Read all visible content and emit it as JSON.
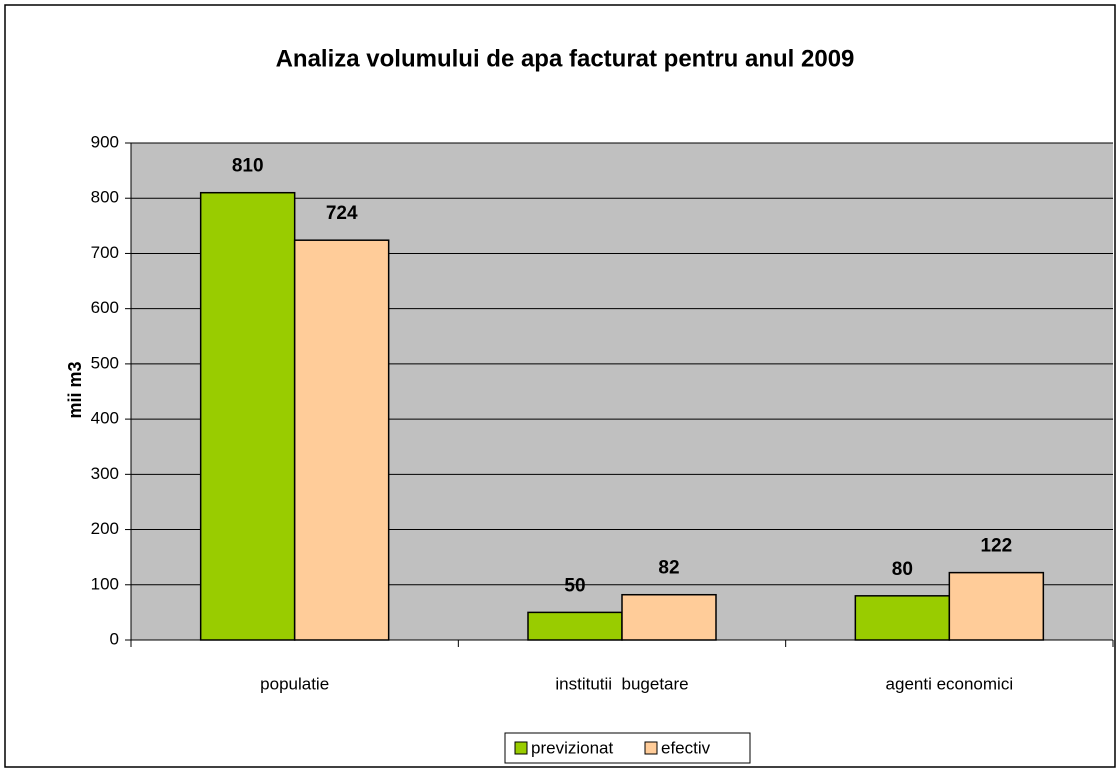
{
  "chart_data": {
    "type": "bar",
    "title": "Analiza volumului de apa facturat pentru anul 2009",
    "y_label": "mii m3",
    "categories": [
      "populatie",
      "institutii  bugetare",
      "agenti economici"
    ],
    "series": [
      {
        "name": "previzionat",
        "color": "#99cc00",
        "values": [
          810,
          50,
          80
        ]
      },
      {
        "name": "efectiv",
        "color": "#ffcc99",
        "values": [
          724,
          82,
          122
        ]
      }
    ],
    "ylim": [
      0,
      900
    ],
    "yticks": [
      0,
      100,
      200,
      300,
      400,
      500,
      600,
      700,
      800,
      900
    ],
    "grid": true,
    "legend": "bottom",
    "plot_background": "#c0c0c0"
  }
}
